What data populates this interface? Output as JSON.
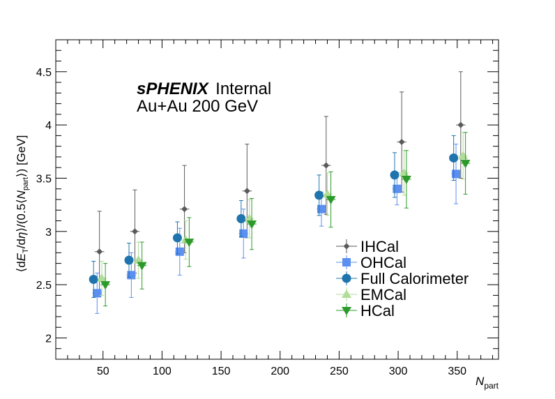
{
  "chart_data": {
    "type": "scatter",
    "title": "sPHENIX",
    "title_suffix": "Internal",
    "subtitle": "Au+Au 200 GeV",
    "xlabel": "N_part",
    "ylabel": "⟨dE_T/dη⟩/(0.5⟨N_part⟩) [GeV]",
    "xlim": [
      10,
      385
    ],
    "ylim": [
      1.8,
      4.8
    ],
    "xticks": [
      "50",
      "100",
      "150",
      "200",
      "250",
      "300",
      "350"
    ],
    "yticks": [
      "2",
      "2.5",
      "3",
      "3.5",
      "4",
      "4.5"
    ],
    "legend_position": "lower-right",
    "series": [
      {
        "name": "IHCal",
        "marker": "diamond",
        "color": "#5a5a5a",
        "x": [
          47,
          77,
          119,
          172,
          239,
          303,
          353
        ],
        "y": [
          2.81,
          3.0,
          3.21,
          3.38,
          3.62,
          3.84,
          4.0
        ],
        "yerr": [
          0.38,
          0.39,
          0.41,
          0.44,
          0.46,
          0.47,
          0.5
        ],
        "xerr": [
          4,
          4,
          4,
          4,
          4,
          4,
          4
        ]
      },
      {
        "name": "OHCal",
        "marker": "square",
        "color": "#5b8ff0",
        "x": [
          45,
          74,
          115,
          169,
          235,
          299,
          349
        ],
        "y": [
          2.42,
          2.59,
          2.81,
          2.98,
          3.21,
          3.4,
          3.54
        ],
        "yerr": [
          0.19,
          0.21,
          0.22,
          0.23,
          0.16,
          0.15,
          0.28
        ],
        "xerr": [
          4,
          4,
          4,
          4,
          4,
          4,
          4
        ]
      },
      {
        "name": "Full Calorimeter",
        "marker": "circle",
        "color": "#1f74ad",
        "x": [
          42,
          72,
          113,
          167,
          233,
          297,
          347
        ],
        "y": [
          2.55,
          2.73,
          2.94,
          3.12,
          3.34,
          3.53,
          3.69
        ],
        "yerr": [
          0.17,
          0.16,
          0.15,
          0.17,
          0.19,
          0.21,
          0.21
        ],
        "xerr": [
          3,
          3,
          3,
          3,
          3,
          3,
          3
        ]
      },
      {
        "name": "EMCal",
        "marker": "triangle-up",
        "color": "#b0dd98",
        "x": [
          49,
          80,
          120,
          174,
          240,
          305,
          355
        ],
        "y": [
          2.56,
          2.73,
          2.92,
          3.12,
          3.35,
          3.55,
          3.71
        ],
        "yerr": [
          0.16,
          0.17,
          0.18,
          0.18,
          0.2,
          0.21,
          0.22
        ],
        "xerr": [
          4,
          4,
          4,
          4,
          4,
          4,
          4
        ]
      },
      {
        "name": "HCal",
        "marker": "triangle-down",
        "color": "#2c9a2a",
        "x": [
          52,
          83,
          123,
          176,
          243,
          307,
          357
        ],
        "y": [
          2.5,
          2.68,
          2.9,
          3.07,
          3.3,
          3.49,
          3.64
        ],
        "yerr": [
          0.2,
          0.22,
          0.23,
          0.24,
          0.26,
          0.27,
          0.29
        ],
        "xerr": [
          4,
          4,
          4,
          4,
          4,
          4,
          4
        ]
      }
    ]
  }
}
